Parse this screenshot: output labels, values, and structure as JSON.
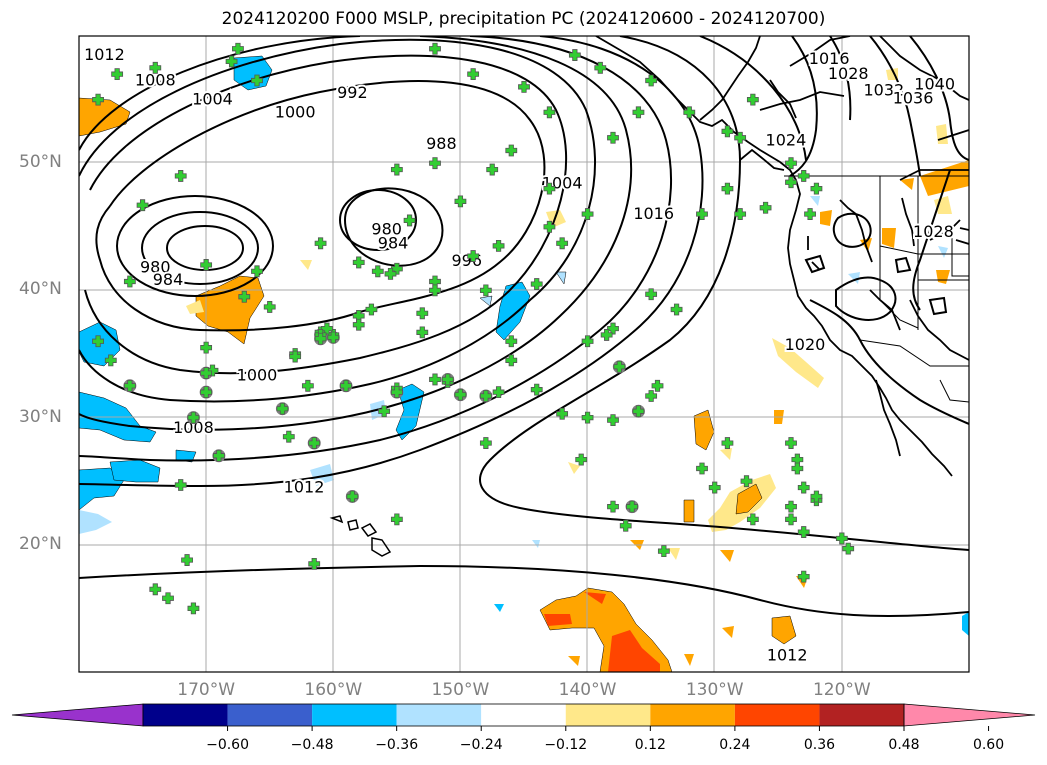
{
  "title": "2024120200 F000 MSLP, precipitation PC (2024120600 - 2024120700)",
  "map": {
    "lon_range": [
      -180,
      -110
    ],
    "lat_range": [
      10,
      60
    ],
    "lat_labels": [
      {
        "text": "50°N",
        "lat": 50
      },
      {
        "text": "40°N",
        "lat": 40
      },
      {
        "text": "30°N",
        "lat": 30
      },
      {
        "text": "20°N",
        "lat": 20
      }
    ],
    "lon_labels": [
      {
        "text": "170°W",
        "lon": -170
      },
      {
        "text": "160°W",
        "lon": -160
      },
      {
        "text": "150°W",
        "lon": -150
      },
      {
        "text": "140°W",
        "lon": -140
      },
      {
        "text": "130°W",
        "lon": -130
      },
      {
        "text": "120°W",
        "lon": -120
      }
    ],
    "grid": true,
    "isobar_labels": [
      {
        "text": "1012",
        "lon": -178,
        "lat": 58.5
      },
      {
        "text": "1008",
        "lon": -174,
        "lat": 56.5
      },
      {
        "text": "1004",
        "lon": -169.5,
        "lat": 55
      },
      {
        "text": "1000",
        "lon": -163,
        "lat": 54
      },
      {
        "text": "992",
        "lon": -158.5,
        "lat": 55.5
      },
      {
        "text": "988",
        "lon": -151.5,
        "lat": 51.5
      },
      {
        "text": "980",
        "lon": -174,
        "lat": 41.8
      },
      {
        "text": "984",
        "lon": -173,
        "lat": 40.8
      },
      {
        "text": "980",
        "lon": -155.8,
        "lat": 44.8
      },
      {
        "text": "984",
        "lon": -155.3,
        "lat": 43.7
      },
      {
        "text": "996",
        "lon": -149.5,
        "lat": 42.3
      },
      {
        "text": "1004",
        "lon": -142,
        "lat": 48.4
      },
      {
        "text": "1016",
        "lon": -134.8,
        "lat": 46
      },
      {
        "text": "1000",
        "lon": -166,
        "lat": 33.3
      },
      {
        "text": "1008",
        "lon": -171,
        "lat": 29.2
      },
      {
        "text": "1012",
        "lon": -162.3,
        "lat": 24.5
      },
      {
        "text": "1024",
        "lon": -124.4,
        "lat": 51.8
      },
      {
        "text": "1032",
        "lon": -116.7,
        "lat": 55.7
      },
      {
        "text": "1036",
        "lon": -114.4,
        "lat": 55.1
      },
      {
        "text": "1040",
        "lon": -112.7,
        "lat": 56.2
      },
      {
        "text": "1028",
        "lon": -119.5,
        "lat": 57
      },
      {
        "text": "1016",
        "lon": -121,
        "lat": 58.2
      },
      {
        "text": "1028",
        "lon": -112.8,
        "lat": 44.6
      },
      {
        "text": "1020",
        "lon": -122.9,
        "lat": 35.7
      },
      {
        "text": "1012",
        "lon": -124.3,
        "lat": 11.3
      }
    ],
    "precip_signal_markers": "green plus = forecast members agreement",
    "colors": {
      "coast": "#000000",
      "isobar": "#000000",
      "grid": "#a9a9a9",
      "marker": "#32cd32",
      "circle": "#808080"
    }
  },
  "colorbar": {
    "ticks": [
      "−0.60",
      "−0.48",
      "−0.36",
      "−0.24",
      "−0.12",
      "0.12",
      "0.24",
      "0.36",
      "0.48",
      "0.60"
    ],
    "colors": [
      "#9932cc",
      "#00008b",
      "#3a5fcd",
      "#00bfff",
      "#b0e2ff",
      "#ffffff",
      "#ffe88a",
      "#ffa500",
      "#ff4500",
      "#b22222",
      "#ff88aa"
    ]
  }
}
